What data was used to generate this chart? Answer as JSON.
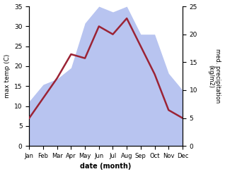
{
  "months": [
    "Jan",
    "Feb",
    "Mar",
    "Apr",
    "May",
    "Jun",
    "Jul",
    "Aug",
    "Sep",
    "Oct",
    "Nov",
    "Dec"
  ],
  "temperature": [
    7,
    12,
    17,
    23,
    22,
    30,
    28,
    32,
    25,
    18,
    9,
    7
  ],
  "precipitation": [
    8,
    11,
    12,
    14,
    22,
    25,
    24,
    25,
    20,
    20,
    13,
    10
  ],
  "temp_color": "#9b2335",
  "precip_color": "#b8c4f0",
  "left_ylabel": "max temp (C)",
  "right_ylabel": "med. precipitation\n(kg/m2)",
  "xlabel": "date (month)",
  "left_ylim": [
    0,
    35
  ],
  "right_ylim": [
    0,
    25
  ],
  "left_yticks": [
    0,
    5,
    10,
    15,
    20,
    25,
    30,
    35
  ],
  "right_yticks": [
    0,
    5,
    10,
    15,
    20,
    25
  ],
  "temp_linewidth": 1.8
}
